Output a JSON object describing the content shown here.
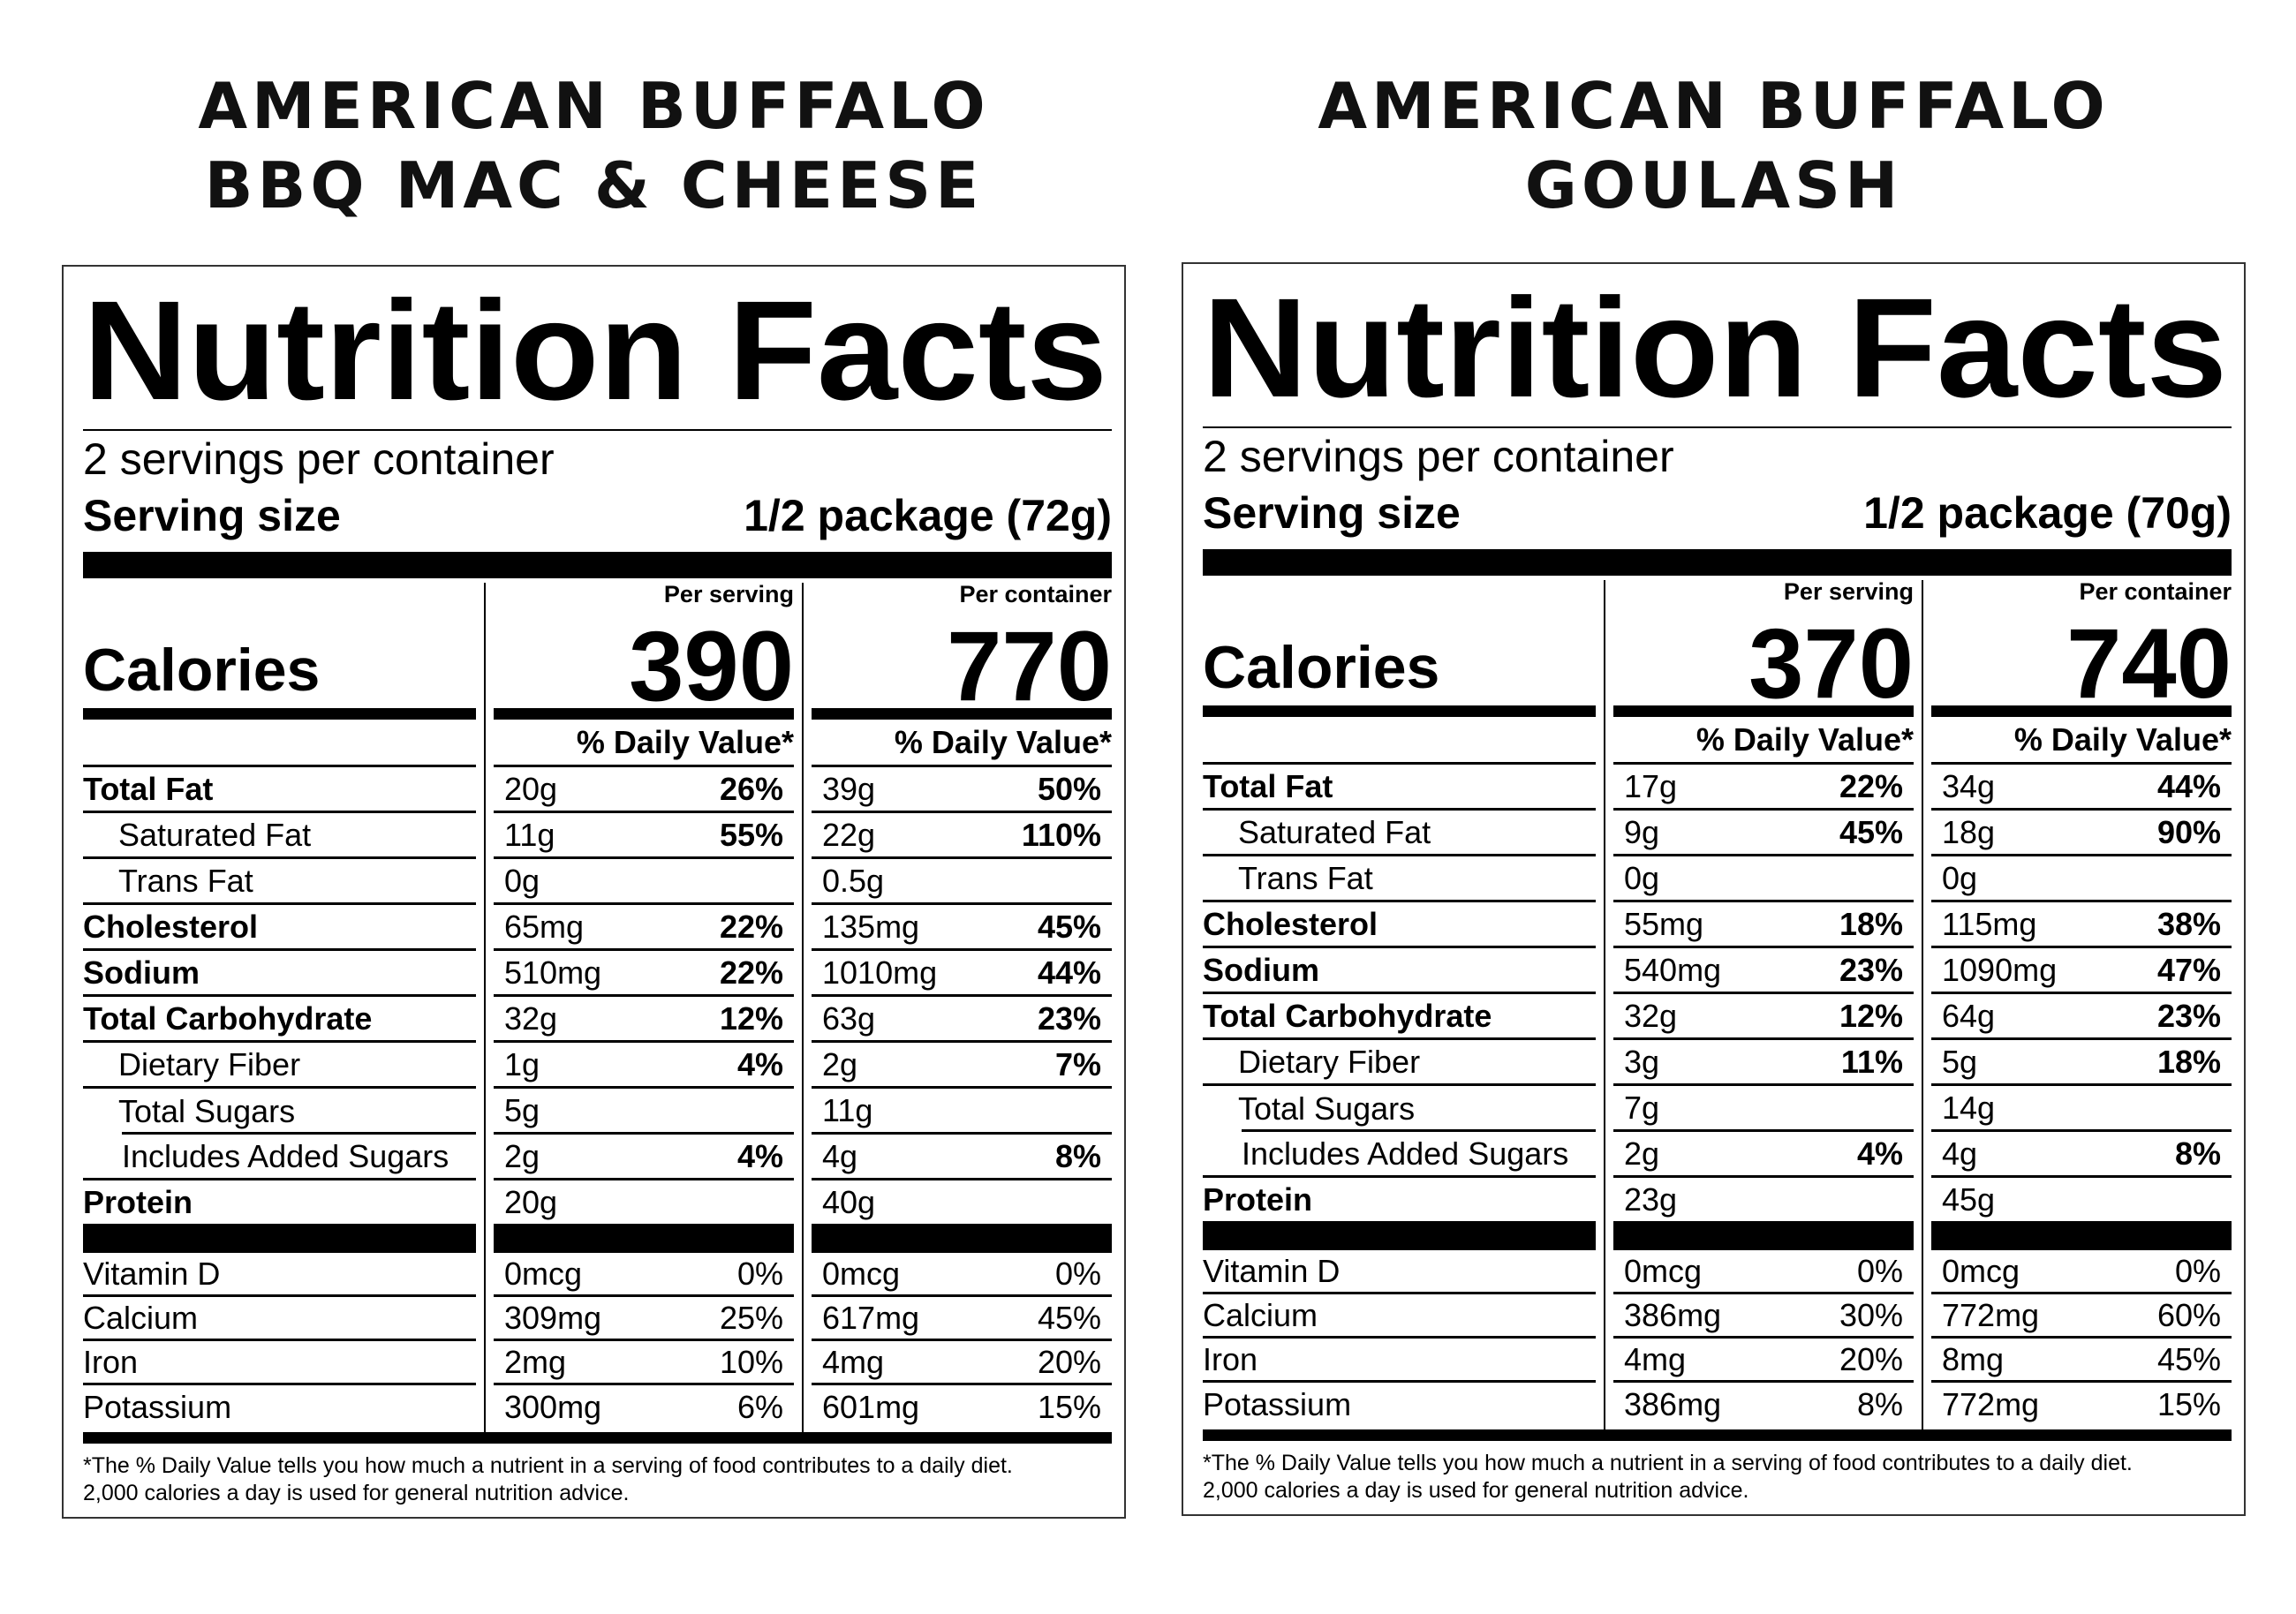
{
  "labels": {
    "title": "Nutrition Facts",
    "serving_size_label": "Serving size",
    "per_serving": "Per serving",
    "per_container": "Per container",
    "calories": "Calories",
    "daily_value": "% Daily Value*",
    "footnote": [
      "*The % Daily Value tells you how much a nutrient in a serving of food contributes to a daily diet.",
      "2,000 calories a day is used for general nutrition advice."
    ]
  },
  "products": [
    {
      "title_lines": [
        "AMERICAN BUFFALO",
        "BBQ MAC & CHEESE"
      ],
      "servings_per_container": "2 servings per container",
      "serving_size": "1/2 package (72g)",
      "calories": {
        "per_serving": "390",
        "per_container": "770"
      },
      "nutrients": [
        {
          "name": "Total Fat",
          "serving": [
            "20g",
            "26%"
          ],
          "container": [
            "39g",
            "50%"
          ]
        },
        {
          "name": "Saturated Fat",
          "serving": [
            "11g",
            "55%"
          ],
          "container": [
            "22g",
            "110%"
          ]
        },
        {
          "name": "Trans Fat",
          "serving": [
            "0g",
            ""
          ],
          "container": [
            "0.5g",
            ""
          ]
        },
        {
          "name": "Cholesterol",
          "serving": [
            "65mg",
            "22%"
          ],
          "container": [
            "135mg",
            "45%"
          ]
        },
        {
          "name": "Sodium",
          "serving": [
            "510mg",
            "22%"
          ],
          "container": [
            "1010mg",
            "44%"
          ]
        },
        {
          "name": "Total Carbohydrate",
          "serving": [
            "32g",
            "12%"
          ],
          "container": [
            "63g",
            "23%"
          ]
        },
        {
          "name": "Dietary Fiber",
          "serving": [
            "1g",
            "4%"
          ],
          "container": [
            "2g",
            "7%"
          ]
        },
        {
          "name": "Total Sugars",
          "serving": [
            "5g",
            ""
          ],
          "container": [
            "11g",
            ""
          ]
        },
        {
          "name": "Includes Added Sugars",
          "serving": [
            "2g",
            "4%"
          ],
          "container": [
            "4g",
            "8%"
          ]
        },
        {
          "name": "Protein",
          "serving": [
            "20g",
            ""
          ],
          "container": [
            "40g",
            ""
          ]
        }
      ],
      "vitamins": [
        {
          "name": "Vitamin D",
          "serving": [
            "0mcg",
            "0%"
          ],
          "container": [
            "0mcg",
            "0%"
          ]
        },
        {
          "name": "Calcium",
          "serving": [
            "309mg",
            "25%"
          ],
          "container": [
            "617mg",
            "45%"
          ]
        },
        {
          "name": "Iron",
          "serving": [
            "2mg",
            "10%"
          ],
          "container": [
            "4mg",
            "20%"
          ]
        },
        {
          "name": "Potassium",
          "serving": [
            "300mg",
            "6%"
          ],
          "container": [
            "601mg",
            "15%"
          ]
        }
      ]
    },
    {
      "title_lines": [
        "AMERICAN BUFFALO",
        "GOULASH"
      ],
      "servings_per_container": "2 servings per container",
      "serving_size": "1/2 package (70g)",
      "calories": {
        "per_serving": "370",
        "per_container": "740"
      },
      "nutrients": [
        {
          "name": "Total Fat",
          "serving": [
            "17g",
            "22%"
          ],
          "container": [
            "34g",
            "44%"
          ]
        },
        {
          "name": "Saturated Fat",
          "serving": [
            "9g",
            "45%"
          ],
          "container": [
            "18g",
            "90%"
          ]
        },
        {
          "name": "Trans Fat",
          "serving": [
            "0g",
            ""
          ],
          "container": [
            "0g",
            ""
          ]
        },
        {
          "name": "Cholesterol",
          "serving": [
            "55mg",
            "18%"
          ],
          "container": [
            "115mg",
            "38%"
          ]
        },
        {
          "name": "Sodium",
          "serving": [
            "540mg",
            "23%"
          ],
          "container": [
            "1090mg",
            "47%"
          ]
        },
        {
          "name": "Total Carbohydrate",
          "serving": [
            "32g",
            "12%"
          ],
          "container": [
            "64g",
            "23%"
          ]
        },
        {
          "name": "Dietary Fiber",
          "serving": [
            "3g",
            "11%"
          ],
          "container": [
            "5g",
            "18%"
          ]
        },
        {
          "name": "Total Sugars",
          "serving": [
            "7g",
            ""
          ],
          "container": [
            "14g",
            ""
          ]
        },
        {
          "name": "Includes Added Sugars",
          "serving": [
            "2g",
            "4%"
          ],
          "container": [
            "4g",
            "8%"
          ]
        },
        {
          "name": "Protein",
          "serving": [
            "23g",
            ""
          ],
          "container": [
            "45g",
            ""
          ]
        }
      ],
      "vitamins": [
        {
          "name": "Vitamin D",
          "serving": [
            "0mcg",
            "0%"
          ],
          "container": [
            "0mcg",
            "0%"
          ]
        },
        {
          "name": "Calcium",
          "serving": [
            "386mg",
            "30%"
          ],
          "container": [
            "772mg",
            "60%"
          ]
        },
        {
          "name": "Iron",
          "serving": [
            "4mg",
            "20%"
          ],
          "container": [
            "8mg",
            "45%"
          ]
        },
        {
          "name": "Potassium",
          "serving": [
            "386mg",
            "8%"
          ],
          "container": [
            "772mg",
            "15%"
          ]
        }
      ]
    }
  ]
}
